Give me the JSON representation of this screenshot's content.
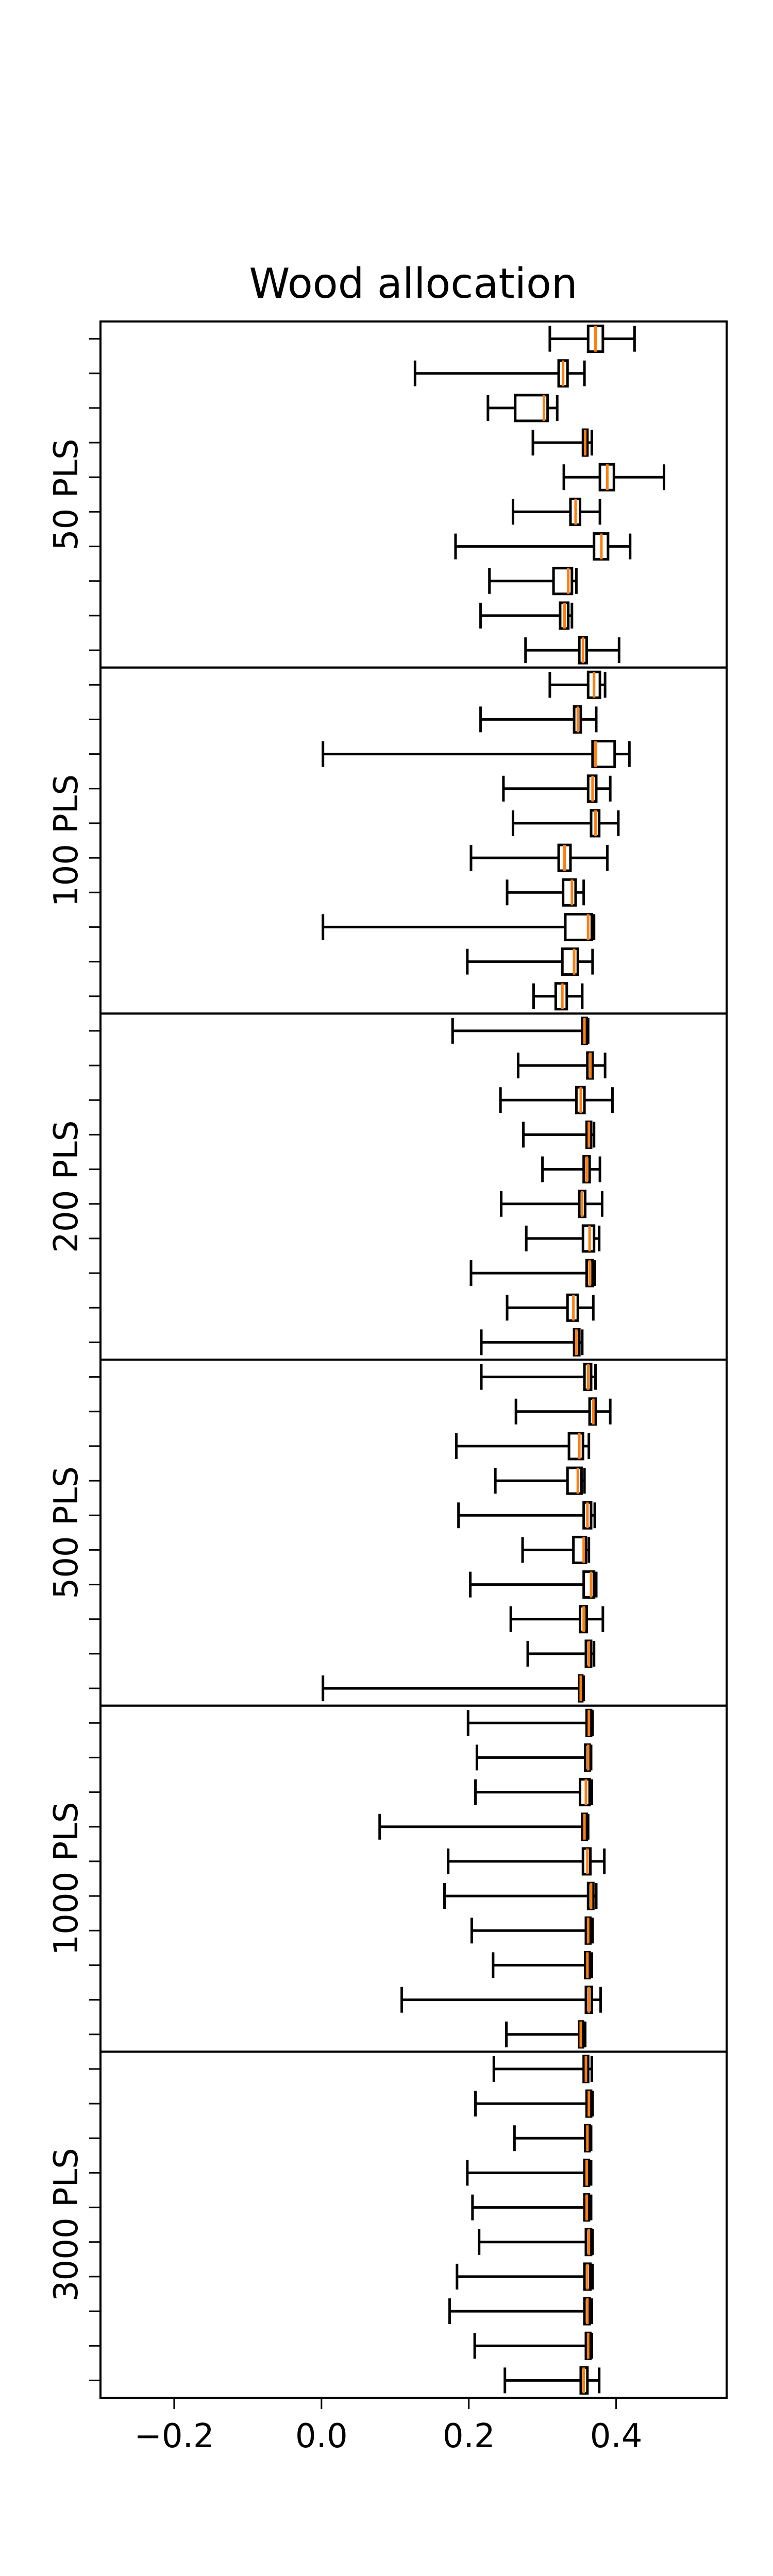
{
  "chart_data": {
    "type": "boxplot",
    "orientation": "horizontal",
    "title": "Wood allocation",
    "xlabel": "",
    "xlim": [
      -0.3,
      0.55
    ],
    "xticks": [
      -0.2,
      0.0,
      0.2,
      0.4
    ],
    "xtick_labels": [
      "−0.2",
      "0.0",
      "0.2",
      "0.4"
    ],
    "colors": {
      "median": "#ff7f0e",
      "box": "#000000"
    },
    "grid": false,
    "legend": "none",
    "panels": [
      {
        "label": "50 PLS",
        "boxes": [
          {
            "min": 0.31,
            "q1": 0.362,
            "median": 0.372,
            "q3": 0.382,
            "max": 0.425
          },
          {
            "min": 0.127,
            "q1": 0.322,
            "median": 0.328,
            "q3": 0.334,
            "max": 0.357
          },
          {
            "min": 0.226,
            "q1": 0.263,
            "median": 0.302,
            "q3": 0.307,
            "max": 0.32
          },
          {
            "min": 0.287,
            "q1": 0.355,
            "median": 0.358,
            "q3": 0.361,
            "max": 0.367
          },
          {
            "min": 0.329,
            "q1": 0.378,
            "median": 0.388,
            "q3": 0.397,
            "max": 0.465
          },
          {
            "min": 0.26,
            "q1": 0.338,
            "median": 0.345,
            "q3": 0.351,
            "max": 0.378
          },
          {
            "min": 0.182,
            "q1": 0.37,
            "median": 0.38,
            "q3": 0.389,
            "max": 0.419
          },
          {
            "min": 0.228,
            "q1": 0.315,
            "median": 0.335,
            "q3": 0.34,
            "max": 0.346
          },
          {
            "min": 0.216,
            "q1": 0.324,
            "median": 0.33,
            "q3": 0.335,
            "max": 0.34
          },
          {
            "min": 0.277,
            "q1": 0.35,
            "median": 0.355,
            "q3": 0.36,
            "max": 0.404
          }
        ]
      },
      {
        "label": "100 PLS",
        "boxes": [
          {
            "min": 0.31,
            "q1": 0.362,
            "median": 0.37,
            "q3": 0.378,
            "max": 0.385
          },
          {
            "min": 0.216,
            "q1": 0.343,
            "median": 0.348,
            "q3": 0.352,
            "max": 0.373
          },
          {
            "min": 0.002,
            "q1": 0.368,
            "median": 0.372,
            "q3": 0.398,
            "max": 0.418
          },
          {
            "min": 0.247,
            "q1": 0.362,
            "median": 0.368,
            "q3": 0.373,
            "max": 0.392
          },
          {
            "min": 0.26,
            "q1": 0.366,
            "median": 0.372,
            "q3": 0.377,
            "max": 0.403
          },
          {
            "min": 0.203,
            "q1": 0.322,
            "median": 0.33,
            "q3": 0.338,
            "max": 0.388
          },
          {
            "min": 0.252,
            "q1": 0.328,
            "median": 0.34,
            "q3": 0.345,
            "max": 0.356
          },
          {
            "min": 0.002,
            "q1": 0.331,
            "median": 0.362,
            "q3": 0.367,
            "max": 0.37
          },
          {
            "min": 0.198,
            "q1": 0.327,
            "median": 0.343,
            "q3": 0.348,
            "max": 0.368
          },
          {
            "min": 0.288,
            "q1": 0.318,
            "median": 0.327,
            "q3": 0.333,
            "max": 0.354
          }
        ]
      },
      {
        "label": "200 PLS",
        "boxes": [
          {
            "min": 0.178,
            "q1": 0.354,
            "median": 0.357,
            "q3": 0.36,
            "max": 0.362
          },
          {
            "min": 0.267,
            "q1": 0.361,
            "median": 0.365,
            "q3": 0.368,
            "max": 0.385
          },
          {
            "min": 0.243,
            "q1": 0.346,
            "median": 0.352,
            "q3": 0.357,
            "max": 0.395
          },
          {
            "min": 0.274,
            "q1": 0.36,
            "median": 0.363,
            "q3": 0.366,
            "max": 0.37
          },
          {
            "min": 0.3,
            "q1": 0.356,
            "median": 0.36,
            "q3": 0.364,
            "max": 0.378
          },
          {
            "min": 0.244,
            "q1": 0.35,
            "median": 0.354,
            "q3": 0.358,
            "max": 0.381
          },
          {
            "min": 0.278,
            "q1": 0.355,
            "median": 0.364,
            "q3": 0.37,
            "max": 0.377
          },
          {
            "min": 0.203,
            "q1": 0.36,
            "median": 0.364,
            "q3": 0.368,
            "max": 0.371
          },
          {
            "min": 0.252,
            "q1": 0.334,
            "median": 0.342,
            "q3": 0.348,
            "max": 0.369
          },
          {
            "min": 0.217,
            "q1": 0.343,
            "median": 0.346,
            "q3": 0.35,
            "max": 0.354
          }
        ]
      },
      {
        "label": "500 PLS",
        "boxes": [
          {
            "min": 0.217,
            "q1": 0.357,
            "median": 0.362,
            "q3": 0.366,
            "max": 0.372
          },
          {
            "min": 0.264,
            "q1": 0.364,
            "median": 0.369,
            "q3": 0.372,
            "max": 0.392
          },
          {
            "min": 0.183,
            "q1": 0.336,
            "median": 0.35,
            "q3": 0.355,
            "max": 0.363
          },
          {
            "min": 0.236,
            "q1": 0.334,
            "median": 0.348,
            "q3": 0.353,
            "max": 0.357
          },
          {
            "min": 0.186,
            "q1": 0.356,
            "median": 0.361,
            "q3": 0.366,
            "max": 0.371
          },
          {
            "min": 0.273,
            "q1": 0.342,
            "median": 0.356,
            "q3": 0.359,
            "max": 0.363
          },
          {
            "min": 0.202,
            "q1": 0.356,
            "median": 0.366,
            "q3": 0.37,
            "max": 0.373
          },
          {
            "min": 0.257,
            "q1": 0.351,
            "median": 0.356,
            "q3": 0.36,
            "max": 0.382
          },
          {
            "min": 0.28,
            "q1": 0.359,
            "median": 0.363,
            "q3": 0.366,
            "max": 0.37
          },
          {
            "min": 0.002,
            "q1": 0.35,
            "median": 0.352,
            "q3": 0.354,
            "max": 0.356
          }
        ]
      },
      {
        "label": "1000 PLS",
        "boxes": [
          {
            "min": 0.199,
            "q1": 0.36,
            "median": 0.363,
            "q3": 0.366,
            "max": 0.368
          },
          {
            "min": 0.211,
            "q1": 0.358,
            "median": 0.362,
            "q3": 0.364,
            "max": 0.366
          },
          {
            "min": 0.209,
            "q1": 0.351,
            "median": 0.359,
            "q3": 0.364,
            "max": 0.367
          },
          {
            "min": 0.079,
            "q1": 0.354,
            "median": 0.357,
            "q3": 0.36,
            "max": 0.362
          },
          {
            "min": 0.172,
            "q1": 0.355,
            "median": 0.361,
            "q3": 0.365,
            "max": 0.384
          },
          {
            "min": 0.167,
            "q1": 0.362,
            "median": 0.366,
            "q3": 0.369,
            "max": 0.373
          },
          {
            "min": 0.204,
            "q1": 0.359,
            "median": 0.362,
            "q3": 0.365,
            "max": 0.368
          },
          {
            "min": 0.233,
            "q1": 0.358,
            "median": 0.361,
            "q3": 0.364,
            "max": 0.367
          },
          {
            "min": 0.109,
            "q1": 0.359,
            "median": 0.363,
            "q3": 0.367,
            "max": 0.379
          },
          {
            "min": 0.251,
            "q1": 0.35,
            "median": 0.352,
            "q3": 0.355,
            "max": 0.358
          }
        ]
      },
      {
        "label": "3000 PLS",
        "boxes": [
          {
            "min": 0.234,
            "q1": 0.356,
            "median": 0.359,
            "q3": 0.362,
            "max": 0.367
          },
          {
            "min": 0.209,
            "q1": 0.36,
            "median": 0.363,
            "q3": 0.366,
            "max": 0.368
          },
          {
            "min": 0.262,
            "q1": 0.358,
            "median": 0.361,
            "q3": 0.364,
            "max": 0.366
          },
          {
            "min": 0.198,
            "q1": 0.357,
            "median": 0.36,
            "q3": 0.363,
            "max": 0.366
          },
          {
            "min": 0.205,
            "q1": 0.357,
            "median": 0.36,
            "q3": 0.363,
            "max": 0.366
          },
          {
            "min": 0.214,
            "q1": 0.359,
            "median": 0.363,
            "q3": 0.366,
            "max": 0.368
          },
          {
            "min": 0.184,
            "q1": 0.357,
            "median": 0.361,
            "q3": 0.365,
            "max": 0.368
          },
          {
            "min": 0.174,
            "q1": 0.357,
            "median": 0.361,
            "q3": 0.364,
            "max": 0.367
          },
          {
            "min": 0.208,
            "q1": 0.359,
            "median": 0.362,
            "q3": 0.365,
            "max": 0.367
          },
          {
            "min": 0.249,
            "q1": 0.352,
            "median": 0.356,
            "q3": 0.361,
            "max": 0.377
          }
        ]
      }
    ]
  }
}
